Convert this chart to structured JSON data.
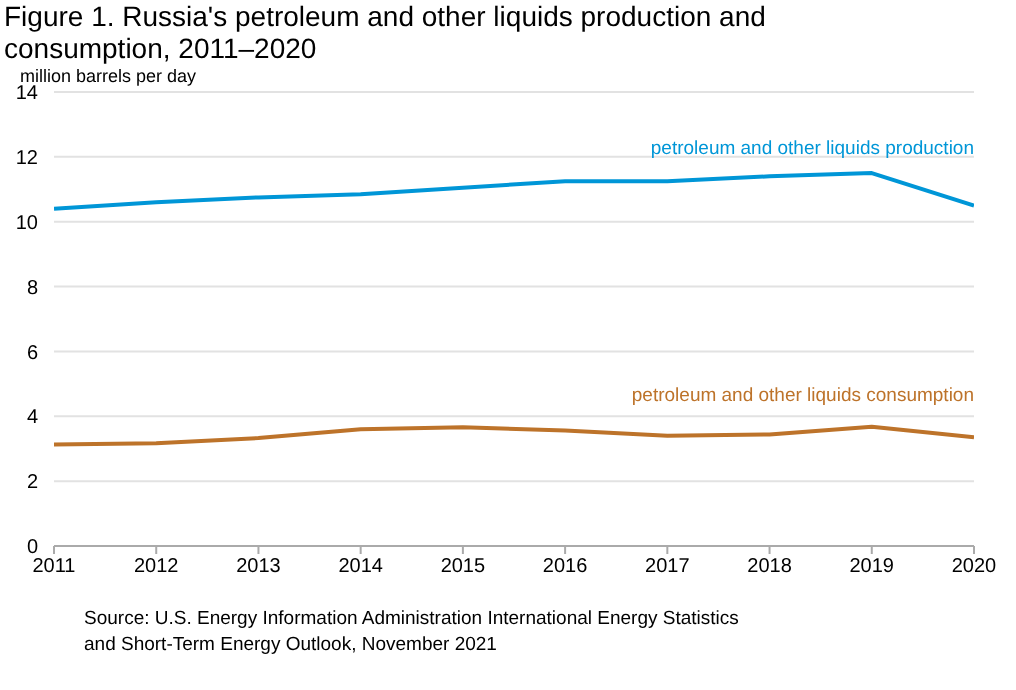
{
  "chart_data": {
    "type": "line",
    "title": "Figure 1. Russia's petroleum and other liquids production and consumption, 2011–2020",
    "ylabel": "million barrels per day",
    "x": [
      2011,
      2012,
      2013,
      2014,
      2015,
      2016,
      2017,
      2018,
      2019,
      2020
    ],
    "series": [
      {
        "name": "petroleum and other liquids production",
        "color": "#0096d7",
        "values": [
          10.4,
          10.6,
          10.75,
          10.85,
          11.05,
          11.25,
          11.25,
          11.4,
          11.5,
          10.5
        ]
      },
      {
        "name": "petroleum and other liquids consumption",
        "color": "#bd732a",
        "values": [
          3.13,
          3.17,
          3.33,
          3.6,
          3.66,
          3.56,
          3.4,
          3.44,
          3.68,
          3.35
        ]
      }
    ],
    "xlim": [
      2011,
      2020
    ],
    "xticks": [
      2011,
      2012,
      2013,
      2014,
      2015,
      2016,
      2017,
      2018,
      2019,
      2020
    ],
    "ylim": [
      0,
      14
    ],
    "yticks": [
      0,
      2,
      4,
      6,
      8,
      10,
      12,
      14
    ],
    "grid": "y",
    "marker": "none",
    "line_style": "solid",
    "annotations": [
      "Source: U.S. Energy Information Administration International Energy Statistics and Short-Term Energy Outlook, November 2021"
    ]
  }
}
